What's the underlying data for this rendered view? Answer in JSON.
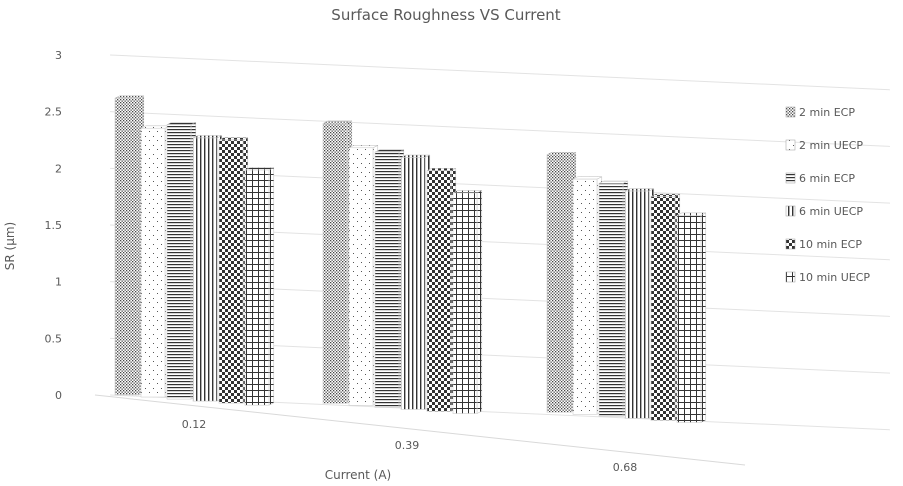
{
  "chart_data": {
    "type": "bar",
    "title": "Surface Roughness VS Current",
    "xlabel": "Current (A)",
    "ylabel": "SR (μm)",
    "ylim": [
      0,
      3
    ],
    "yticks": [
      "0",
      "0.5",
      "1",
      "1.5",
      "2",
      "2.5",
      "3"
    ],
    "categories": [
      "0.12",
      "0.39",
      "0.68"
    ],
    "series": [
      {
        "name": "2 min ECP",
        "values": [
          2.65,
          2.5,
          2.3
        ],
        "pattern": "dense-dots"
      },
      {
        "name": "2 min UECP",
        "values": [
          2.4,
          2.3,
          2.1
        ],
        "pattern": "sparse-dots"
      },
      {
        "name": "6 min ECP",
        "values": [
          2.45,
          2.28,
          2.08
        ],
        "pattern": "horizontal-lines"
      },
      {
        "name": "6 min UECP",
        "values": [
          2.35,
          2.25,
          2.03
        ],
        "pattern": "vertical-lines"
      },
      {
        "name": "10 min ECP",
        "values": [
          2.35,
          2.15,
          2.0
        ],
        "pattern": "checkerboard"
      },
      {
        "name": "10 min UECP",
        "values": [
          2.1,
          1.97,
          1.85
        ],
        "pattern": "grid"
      }
    ],
    "legend_position": "right",
    "grid": true,
    "style": "3d-column"
  }
}
